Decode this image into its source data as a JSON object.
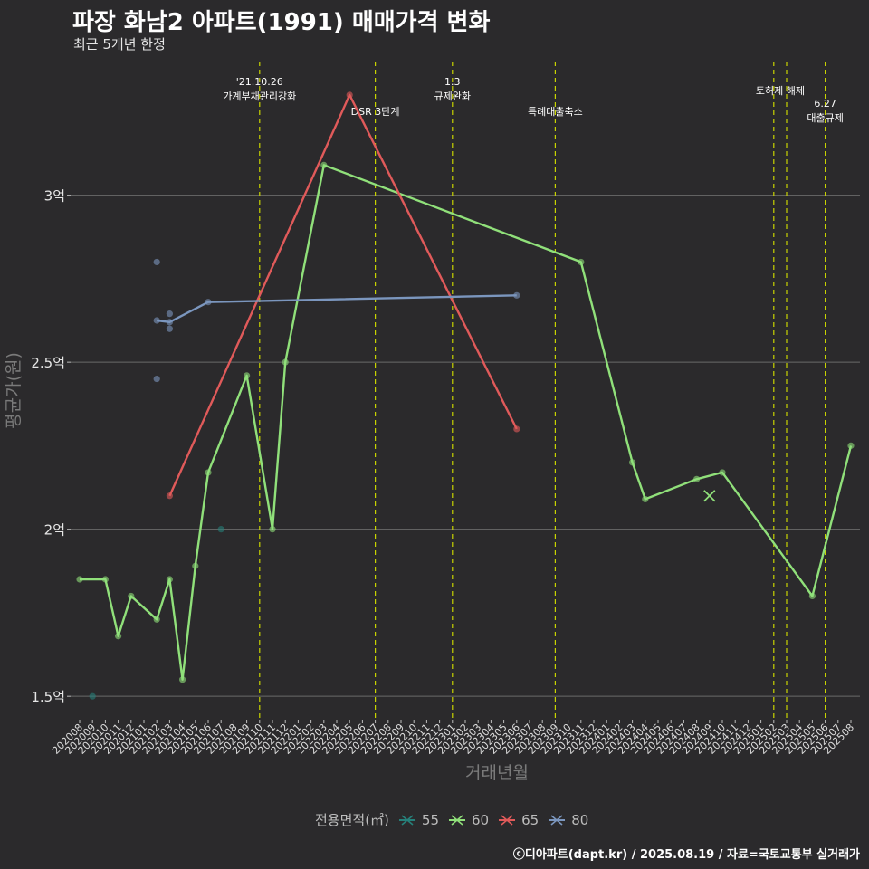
{
  "header": {
    "title": "파장 화남2 아파트(1991) 매매가격 변화",
    "subtitle": "최근 5개년 한정"
  },
  "caption": "ⓒ디아파트(dapt.kr) / 2025.08.19 / 자료=국토교통부 실거래가",
  "chart_data": {
    "type": "line",
    "title": "파장 화남2 아파트(1991) 매매가격 변화",
    "subtitle": "최근 5개년 한정",
    "xlabel": "거래년월",
    "ylabel": "평균가(원)",
    "categories": [
      "202008",
      "202009",
      "202010",
      "202011",
      "202012",
      "202101",
      "202102",
      "202103",
      "202104",
      "202105",
      "202106",
      "202107",
      "202108",
      "202109",
      "202110",
      "202111",
      "202112",
      "202201",
      "202202",
      "202203",
      "202204",
      "202205",
      "202206",
      "202207",
      "202208",
      "202209",
      "202210",
      "202211",
      "202212",
      "202301",
      "202302",
      "202303",
      "202304",
      "202305",
      "202306",
      "202307",
      "202308",
      "202309",
      "202310",
      "202311",
      "202312",
      "202401",
      "202402",
      "202403",
      "202404",
      "202405",
      "202406",
      "202407",
      "202408",
      "202409",
      "202410",
      "202411",
      "202412",
      "202501",
      "202502",
      "202503",
      "202504",
      "202505",
      "202506",
      "202507",
      "202508"
    ],
    "yticks": [
      {
        "value": 1.5,
        "label": "1.5억"
      },
      {
        "value": 2.0,
        "label": "2억"
      },
      {
        "value": 2.5,
        "label": "2.5억"
      },
      {
        "value": 3.0,
        "label": "3억"
      }
    ],
    "ylim": [
      1.43,
      3.4
    ],
    "grid": "horizontal",
    "legend": {
      "title": "전용면적(㎡)",
      "position": "bottom",
      "entries": [
        "55",
        "60",
        "65",
        "80"
      ]
    },
    "series": [
      {
        "name": "55",
        "color": "#26807a",
        "line": false,
        "points": [
          [
            "202009",
            1.5
          ],
          [
            "202107",
            2.0
          ]
        ]
      },
      {
        "name": "60",
        "color": "#90e07a",
        "line": true,
        "points": [
          [
            "202008",
            1.85
          ],
          [
            "202010",
            1.85
          ],
          [
            "202011",
            1.68
          ],
          [
            "202012",
            1.8
          ],
          [
            "202102",
            1.73
          ],
          [
            "202103",
            1.85
          ],
          [
            "202104",
            1.55
          ],
          [
            "202105",
            1.89
          ],
          [
            "202106",
            2.17
          ],
          [
            "202109",
            2.46
          ],
          [
            "202111",
            2.0
          ],
          [
            "202112",
            2.5
          ],
          [
            "202203",
            3.09
          ],
          [
            "202311",
            2.8
          ],
          [
            "202403",
            2.2
          ],
          [
            "202404",
            2.09
          ],
          [
            "202408",
            2.15
          ],
          [
            "202410",
            2.17
          ],
          [
            "202505",
            1.8
          ],
          [
            "202508",
            2.25
          ]
        ]
      },
      {
        "name": "65",
        "color": "#e05a5a",
        "line": true,
        "points": [
          [
            "202103",
            2.1
          ],
          [
            "202205",
            3.3
          ],
          [
            "202306",
            2.3
          ]
        ]
      },
      {
        "name": "80",
        "color": "#7b96be",
        "line": true,
        "points": [
          [
            "202102",
            2.625
          ],
          [
            "202103",
            2.62
          ],
          [
            "202106",
            2.68
          ],
          [
            "202306",
            2.7
          ]
        ]
      }
    ],
    "extra_points": [
      {
        "series": "80",
        "x": "202102",
        "y": 2.8
      },
      {
        "series": "80",
        "x": "202102",
        "y": 2.45
      },
      {
        "series": "80",
        "x": "202103",
        "y": 2.645
      },
      {
        "series": "80",
        "x": "202103",
        "y": 2.6
      }
    ],
    "cross_markers": [
      {
        "series": "60",
        "x": "202409",
        "y": 2.1
      }
    ],
    "annotations": [
      {
        "x": "202110",
        "lines": [
          "'21.10.26",
          "가계부채관리강화"
        ],
        "row": 0
      },
      {
        "x": "202207",
        "lines": [
          "DSR 3단계"
        ],
        "row": 2
      },
      {
        "x": "202301",
        "lines": [
          "1.3",
          "규제완화"
        ],
        "row": 0
      },
      {
        "x": "202309",
        "lines": [
          "특례대출축소"
        ],
        "row": 2
      },
      {
        "x": "202502",
        "lines": [
          "토허제 해제"
        ],
        "row": 1,
        "label_offset": 1
      },
      {
        "x": "202503",
        "lines": [],
        "row": 1
      },
      {
        "x": "202506",
        "lines": [
          "6.27",
          "대출규제"
        ],
        "row": 3
      }
    ]
  }
}
